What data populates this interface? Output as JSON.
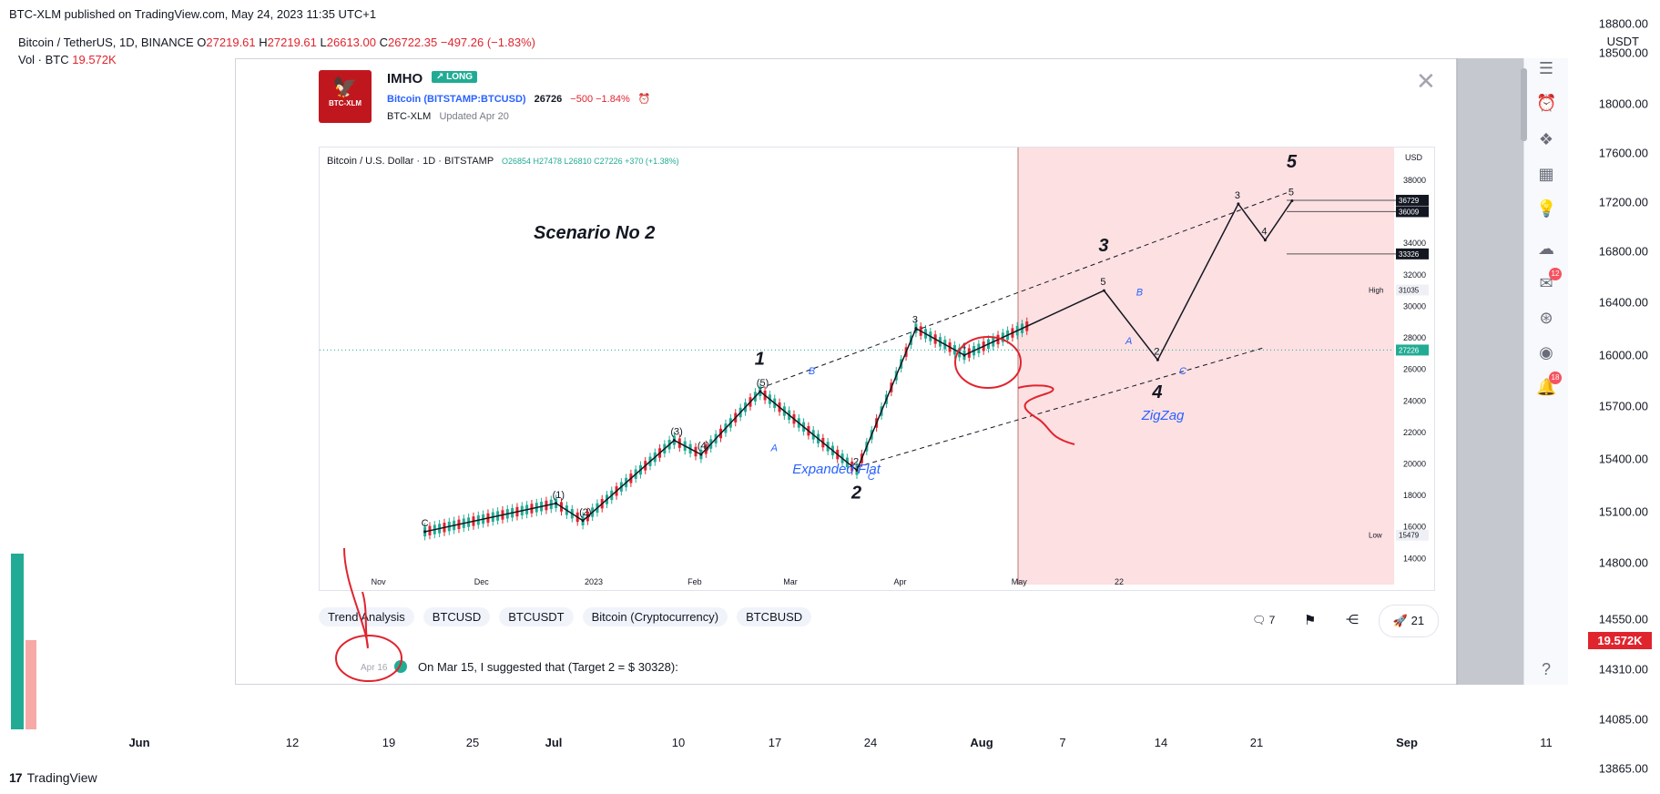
{
  "header": {
    "published_by": "BTC-XLM published on TradingView.com, May 24, 2023 11:35 UTC+1"
  },
  "symbol": {
    "name": "Bitcoin / TetherUS, 1D, BINANCE",
    "open_label": "O",
    "open": "27219.61",
    "high_label": "H",
    "high": "27219.61",
    "low_label": "L",
    "low": "26613.00",
    "close_label": "C",
    "close": "26722.35",
    "change": "−497.26 (−1.83%)"
  },
  "volume": {
    "label": "Vol · BTC",
    "value": "19.572K"
  },
  "price_axis": {
    "currency": "USDT",
    "ticks": [
      "18800.00",
      "18500.00",
      "18000.00",
      "17600.00",
      "17200.00",
      "16800.00",
      "16400.00",
      "16000.00",
      "15700.00",
      "15400.00",
      "15100.00",
      "14800.00",
      "14550.00",
      "14310.00",
      "14085.00",
      "13865.00"
    ],
    "last_price": "19.572K"
  },
  "time_axis": {
    "ticks": [
      "Jun",
      "12",
      "19",
      "25",
      "Jul",
      "10",
      "17",
      "24",
      "Aug",
      "7",
      "14",
      "21",
      "Sep",
      "11"
    ]
  },
  "footer": {
    "brand": "TradingView"
  },
  "idea": {
    "author": "IMHO",
    "position": "LONG",
    "ticker_name": "Bitcoin (BITSTAMP:BTCUSD)",
    "ticker_price": "26726",
    "ticker_change": "−500 −1.84%",
    "byline_user": "BTC-XLM",
    "byline_updated": "Updated Apr 20",
    "avatar_text": "BTC-XLM",
    "tags": [
      "Trend Analysis",
      "BTCUSD",
      "BTCUSDT",
      "Bitcoin (Cryptocurrency)",
      "BTCBUSD"
    ],
    "comments": "7",
    "boosts": "21",
    "desc_date": "Apr 16",
    "description": "On Mar 15, I suggested that (Target 2 = $ 30328):"
  },
  "rightbar": {
    "badge_ideas": "12",
    "badge_alerts": "18"
  },
  "colors": {
    "up": "#22ab94",
    "down": "#e0242e",
    "accent_blue": "#2962ff",
    "forecast_zone": "#fde0e2",
    "annotation_red": "#e0242e",
    "wave_purple": "#9c27b0"
  },
  "chart_data": {
    "type": "line",
    "title": "Bitcoin / U.S. Dollar · 1D · BITSTAMP",
    "ohlc": "O26854 H27478 L26810 C27226 +370 (+1.38%)",
    "currency": "USD",
    "scenario": "Scenario No 2",
    "x_ticks": [
      "Nov",
      "Dec",
      "2023",
      "Feb",
      "Mar",
      "Apr",
      "May",
      "22"
    ],
    "y_ticks": [
      14000,
      16000,
      18000,
      20000,
      22000,
      24000,
      26000,
      28000,
      30000,
      32000,
      34000,
      38000
    ],
    "y_tick_labels": [
      "14000",
      "16000",
      "18000",
      "20000",
      "22000",
      "24000",
      "26000",
      "28000",
      "30000",
      "32000",
      "34000",
      "38000"
    ],
    "ylim": [
      13500,
      39500
    ],
    "price_labels": [
      {
        "label": "36729",
        "value": 36729
      },
      {
        "label": "36009",
        "value": 36009
      },
      {
        "label": "33326",
        "value": 33326
      },
      {
        "label": "31035",
        "value": 31035,
        "tag": "High"
      },
      {
        "label": "27226",
        "value": 27226
      },
      {
        "label": "15479",
        "value": 15479,
        "tag": "Low"
      }
    ],
    "wave_path": [
      {
        "t": 0.098,
        "v": 15700,
        "label": "C"
      },
      {
        "t": 0.22,
        "v": 17500,
        "label": "(1)"
      },
      {
        "t": 0.245,
        "v": 16400,
        "label": "(2)"
      },
      {
        "t": 0.33,
        "v": 21500,
        "label": "(3)"
      },
      {
        "t": 0.355,
        "v": 20600,
        "label": "(4)"
      },
      {
        "t": 0.41,
        "v": 24600,
        "label": "(5)"
      },
      {
        "t": 0.5,
        "v": 19600,
        "label": "2"
      },
      {
        "t": 0.555,
        "v": 28600,
        "label": "3"
      },
      {
        "t": 0.6,
        "v": 26900,
        "label": "4"
      },
      {
        "t": 0.73,
        "v": 31000,
        "label": "5"
      },
      {
        "t": 0.78,
        "v": 26600,
        "label": "2"
      },
      {
        "t": 0.855,
        "v": 36500,
        "label": "3"
      },
      {
        "t": 0.88,
        "v": 34200,
        "label": "4"
      },
      {
        "t": 0.905,
        "v": 36700,
        "label": "5"
      }
    ],
    "wave_labels": [
      {
        "text": "1",
        "t": 0.41,
        "v": 26300
      },
      {
        "text": "2",
        "t": 0.5,
        "v": 17800
      },
      {
        "text": "3",
        "t": 0.73,
        "v": 33500
      },
      {
        "text": "4",
        "t": 0.78,
        "v": 24200
      },
      {
        "text": "5",
        "t": 0.905,
        "v": 38800
      }
    ],
    "annotations": [
      {
        "text": "Expanded Flat",
        "t": 0.44,
        "v": 19400,
        "color": "#2962ff"
      },
      {
        "text": "ZigZag",
        "t": 0.765,
        "v": 22800,
        "color": "#2962ff"
      },
      {
        "text": "A",
        "t": 0.42,
        "v": 20800,
        "color": "#2962ff"
      },
      {
        "text": "B",
        "t": 0.455,
        "v": 25700,
        "color": "#2962ff"
      },
      {
        "text": "C",
        "t": 0.51,
        "v": 19000,
        "color": "#2962ff"
      },
      {
        "text": "A",
        "t": 0.75,
        "v": 27600,
        "color": "#2962ff"
      },
      {
        "text": "B",
        "t": 0.76,
        "v": 30700,
        "color": "#2962ff"
      },
      {
        "text": "C",
        "t": 0.8,
        "v": 25700,
        "color": "#2962ff"
      }
    ],
    "forecast_start_t": 0.65
  }
}
